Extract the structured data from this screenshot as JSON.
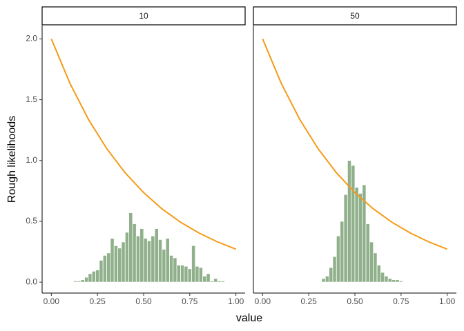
{
  "chart_data": [
    {
      "type": "histogram",
      "strip": "10",
      "ylabel": "Rough likelihoods",
      "xlabel": "value",
      "bins": [
        0.12,
        0.14,
        0.16,
        0.18,
        0.2,
        0.22,
        0.24,
        0.26,
        0.28,
        0.3,
        0.32,
        0.34,
        0.36,
        0.38,
        0.4,
        0.42,
        0.44,
        0.46,
        0.48,
        0.5,
        0.52,
        0.54,
        0.56,
        0.58,
        0.6,
        0.62,
        0.64,
        0.66,
        0.68,
        0.7,
        0.72,
        0.74,
        0.76,
        0.78,
        0.8,
        0.82,
        0.84,
        0.86,
        0.88,
        0.9,
        0.92,
        0.94
      ],
      "values": [
        0.01,
        0.01,
        0.02,
        0.04,
        0.07,
        0.09,
        0.1,
        0.18,
        0.22,
        0.24,
        0.36,
        0.3,
        0.28,
        0.33,
        0.41,
        0.57,
        0.48,
        0.38,
        0.44,
        0.36,
        0.34,
        0.38,
        0.44,
        0.35,
        0.27,
        0.36,
        0.22,
        0.2,
        0.14,
        0.14,
        0.13,
        0.11,
        0.3,
        0.13,
        0.12,
        0.05,
        0.07,
        0.01,
        0.03,
        0.01,
        0.01
      ],
      "color": "#8fb08a",
      "line": {
        "color": "#f59a16",
        "x": [
          0,
          0.1,
          0.2,
          0.3,
          0.4,
          0.5,
          0.6,
          0.7,
          0.8,
          0.9,
          1.0
        ],
        "values": [
          2.0,
          1.637,
          1.341,
          1.098,
          0.899,
          0.736,
          0.602,
          0.493,
          0.404,
          0.331,
          0.271
        ]
      },
      "xlim": [
        -0.05,
        1.05
      ],
      "ylim": [
        -0.09,
        2.11
      ],
      "xticks": [
        {
          "value": 0,
          "label": "0.00"
        },
        {
          "value": 0.25,
          "label": "0.25"
        },
        {
          "value": 0.5,
          "label": "0.50"
        },
        {
          "value": 0.75,
          "label": "0.75"
        },
        {
          "value": 1,
          "label": "1.00"
        }
      ],
      "yticks": [
        {
          "value": 0,
          "label": "0.0"
        },
        {
          "value": 0.5,
          "label": "0.5"
        },
        {
          "value": 1,
          "label": "1.0"
        },
        {
          "value": 1.5,
          "label": "1.5"
        },
        {
          "value": 2,
          "label": "2.0"
        }
      ]
    },
    {
      "type": "histogram",
      "strip": "50",
      "bins": [
        0.32,
        0.34,
        0.36,
        0.38,
        0.4,
        0.42,
        0.44,
        0.46,
        0.48,
        0.5,
        0.52,
        0.54,
        0.56,
        0.58,
        0.6,
        0.62,
        0.64,
        0.66,
        0.68,
        0.7,
        0.72,
        0.74,
        0.76
      ],
      "values": [
        0.03,
        0.05,
        0.12,
        0.21,
        0.38,
        0.5,
        0.72,
        1.0,
        0.96,
        0.78,
        0.73,
        0.8,
        0.48,
        0.33,
        0.24,
        0.14,
        0.08,
        0.05,
        0.03,
        0.02,
        0.02,
        0.01
      ],
      "color": "#8fb08a",
      "line": {
        "color": "#f59a16",
        "x": [
          0,
          0.1,
          0.2,
          0.3,
          0.4,
          0.5,
          0.6,
          0.7,
          0.8,
          0.9,
          1.0
        ],
        "values": [
          2.0,
          1.637,
          1.341,
          1.098,
          0.899,
          0.736,
          0.602,
          0.493,
          0.404,
          0.331,
          0.271
        ]
      },
      "xlim": [
        -0.05,
        1.05
      ],
      "ylim": [
        -0.09,
        2.11
      ],
      "xticks": [
        {
          "value": 0,
          "label": "0.00"
        },
        {
          "value": 0.25,
          "label": "0.25"
        },
        {
          "value": 0.5,
          "label": "0.50"
        },
        {
          "value": 0.75,
          "label": "0.75"
        },
        {
          "value": 1,
          "label": "1.00"
        }
      ]
    }
  ]
}
